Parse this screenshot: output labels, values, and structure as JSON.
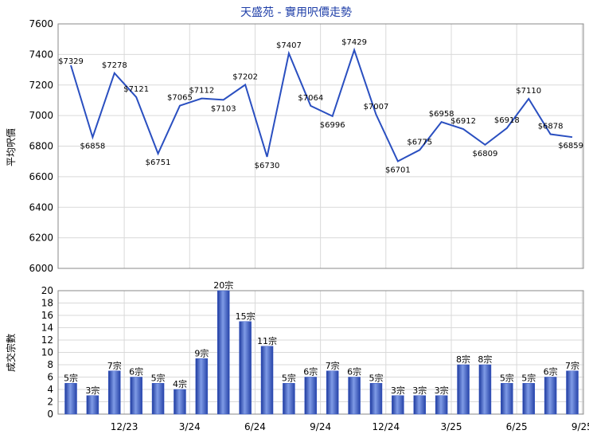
{
  "chart_data": [
    {
      "type": "line",
      "title": "天盛苑 - 實用呎價走勢",
      "ylabel": "平均呎價",
      "ylim": [
        6000,
        7600
      ],
      "yticks": [
        6000,
        6200,
        6400,
        6600,
        6800,
        7000,
        7200,
        7400,
        7600
      ],
      "grid": true,
      "line_color": "#2a4fc0",
      "points": [
        {
          "label": "$7329",
          "value": 7329
        },
        {
          "label": "$6858",
          "value": 6858
        },
        {
          "label": "$7278",
          "value": 7278
        },
        {
          "label": "$7121",
          "value": 7121
        },
        {
          "label": "$6751",
          "value": 6751
        },
        {
          "label": "$7065",
          "value": 7065
        },
        {
          "label": "$7112",
          "value": 7112
        },
        {
          "label": "$7103",
          "value": 7103
        },
        {
          "label": "$7202",
          "value": 7202
        },
        {
          "label": "$6730",
          "value": 6730
        },
        {
          "label": "$7407",
          "value": 7407
        },
        {
          "label": "$7064",
          "value": 7064
        },
        {
          "label": "$6996",
          "value": 6996
        },
        {
          "label": "$7429",
          "value": 7429
        },
        {
          "label": "$7007",
          "value": 7007
        },
        {
          "label": "$6701",
          "value": 6701
        },
        {
          "label": "$6775",
          "value": 6775
        },
        {
          "label": "$6958",
          "value": 6958
        },
        {
          "label": "$6912",
          "value": 6912
        },
        {
          "label": "$6809",
          "value": 6809
        },
        {
          "label": "$6918",
          "value": 6918
        },
        {
          "label": "$7110",
          "value": 7110
        },
        {
          "label": "$6878",
          "value": 6878
        },
        {
          "label": "$6859",
          "value": 6859
        }
      ]
    },
    {
      "type": "bar",
      "ylabel": "成交宗數",
      "ylim": [
        0,
        20
      ],
      "yticks": [
        0,
        2,
        4,
        6,
        8,
        10,
        12,
        14,
        16,
        18,
        20
      ],
      "grid": true,
      "bar_color": "#3556c4",
      "bars": [
        {
          "label": "5宗",
          "value": 5
        },
        {
          "label": "3宗",
          "value": 3
        },
        {
          "label": "7宗",
          "value": 7
        },
        {
          "label": "6宗",
          "value": 6
        },
        {
          "label": "5宗",
          "value": 5
        },
        {
          "label": "4宗",
          "value": 4
        },
        {
          "label": "9宗",
          "value": 9
        },
        {
          "label": "20宗",
          "value": 20
        },
        {
          "label": "15宗",
          "value": 15
        },
        {
          "label": "11宗",
          "value": 11
        },
        {
          "label": "5宗",
          "value": 5
        },
        {
          "label": "6宗",
          "value": 6
        },
        {
          "label": "7宗",
          "value": 7
        },
        {
          "label": "6宗",
          "value": 6
        },
        {
          "label": "5宗",
          "value": 5
        },
        {
          "label": "3宗",
          "value": 3
        },
        {
          "label": "3宗",
          "value": 3
        },
        {
          "label": "3宗",
          "value": 3
        },
        {
          "label": "8宗",
          "value": 8
        },
        {
          "label": "8宗",
          "value": 8
        },
        {
          "label": "5宗",
          "value": 5
        },
        {
          "label": "5宗",
          "value": 5
        },
        {
          "label": "6宗",
          "value": 6
        },
        {
          "label": "7宗",
          "value": 7
        }
      ],
      "x_tick_labels": [
        {
          "label": "12/23",
          "index": 2
        },
        {
          "label": "3/24",
          "index": 5
        },
        {
          "label": "6/24",
          "index": 8
        },
        {
          "label": "9/24",
          "index": 11
        },
        {
          "label": "12/24",
          "index": 14
        },
        {
          "label": "3/25",
          "index": 17
        },
        {
          "label": "6/25",
          "index": 20
        },
        {
          "label": "9/25",
          "index": 23
        }
      ]
    }
  ]
}
